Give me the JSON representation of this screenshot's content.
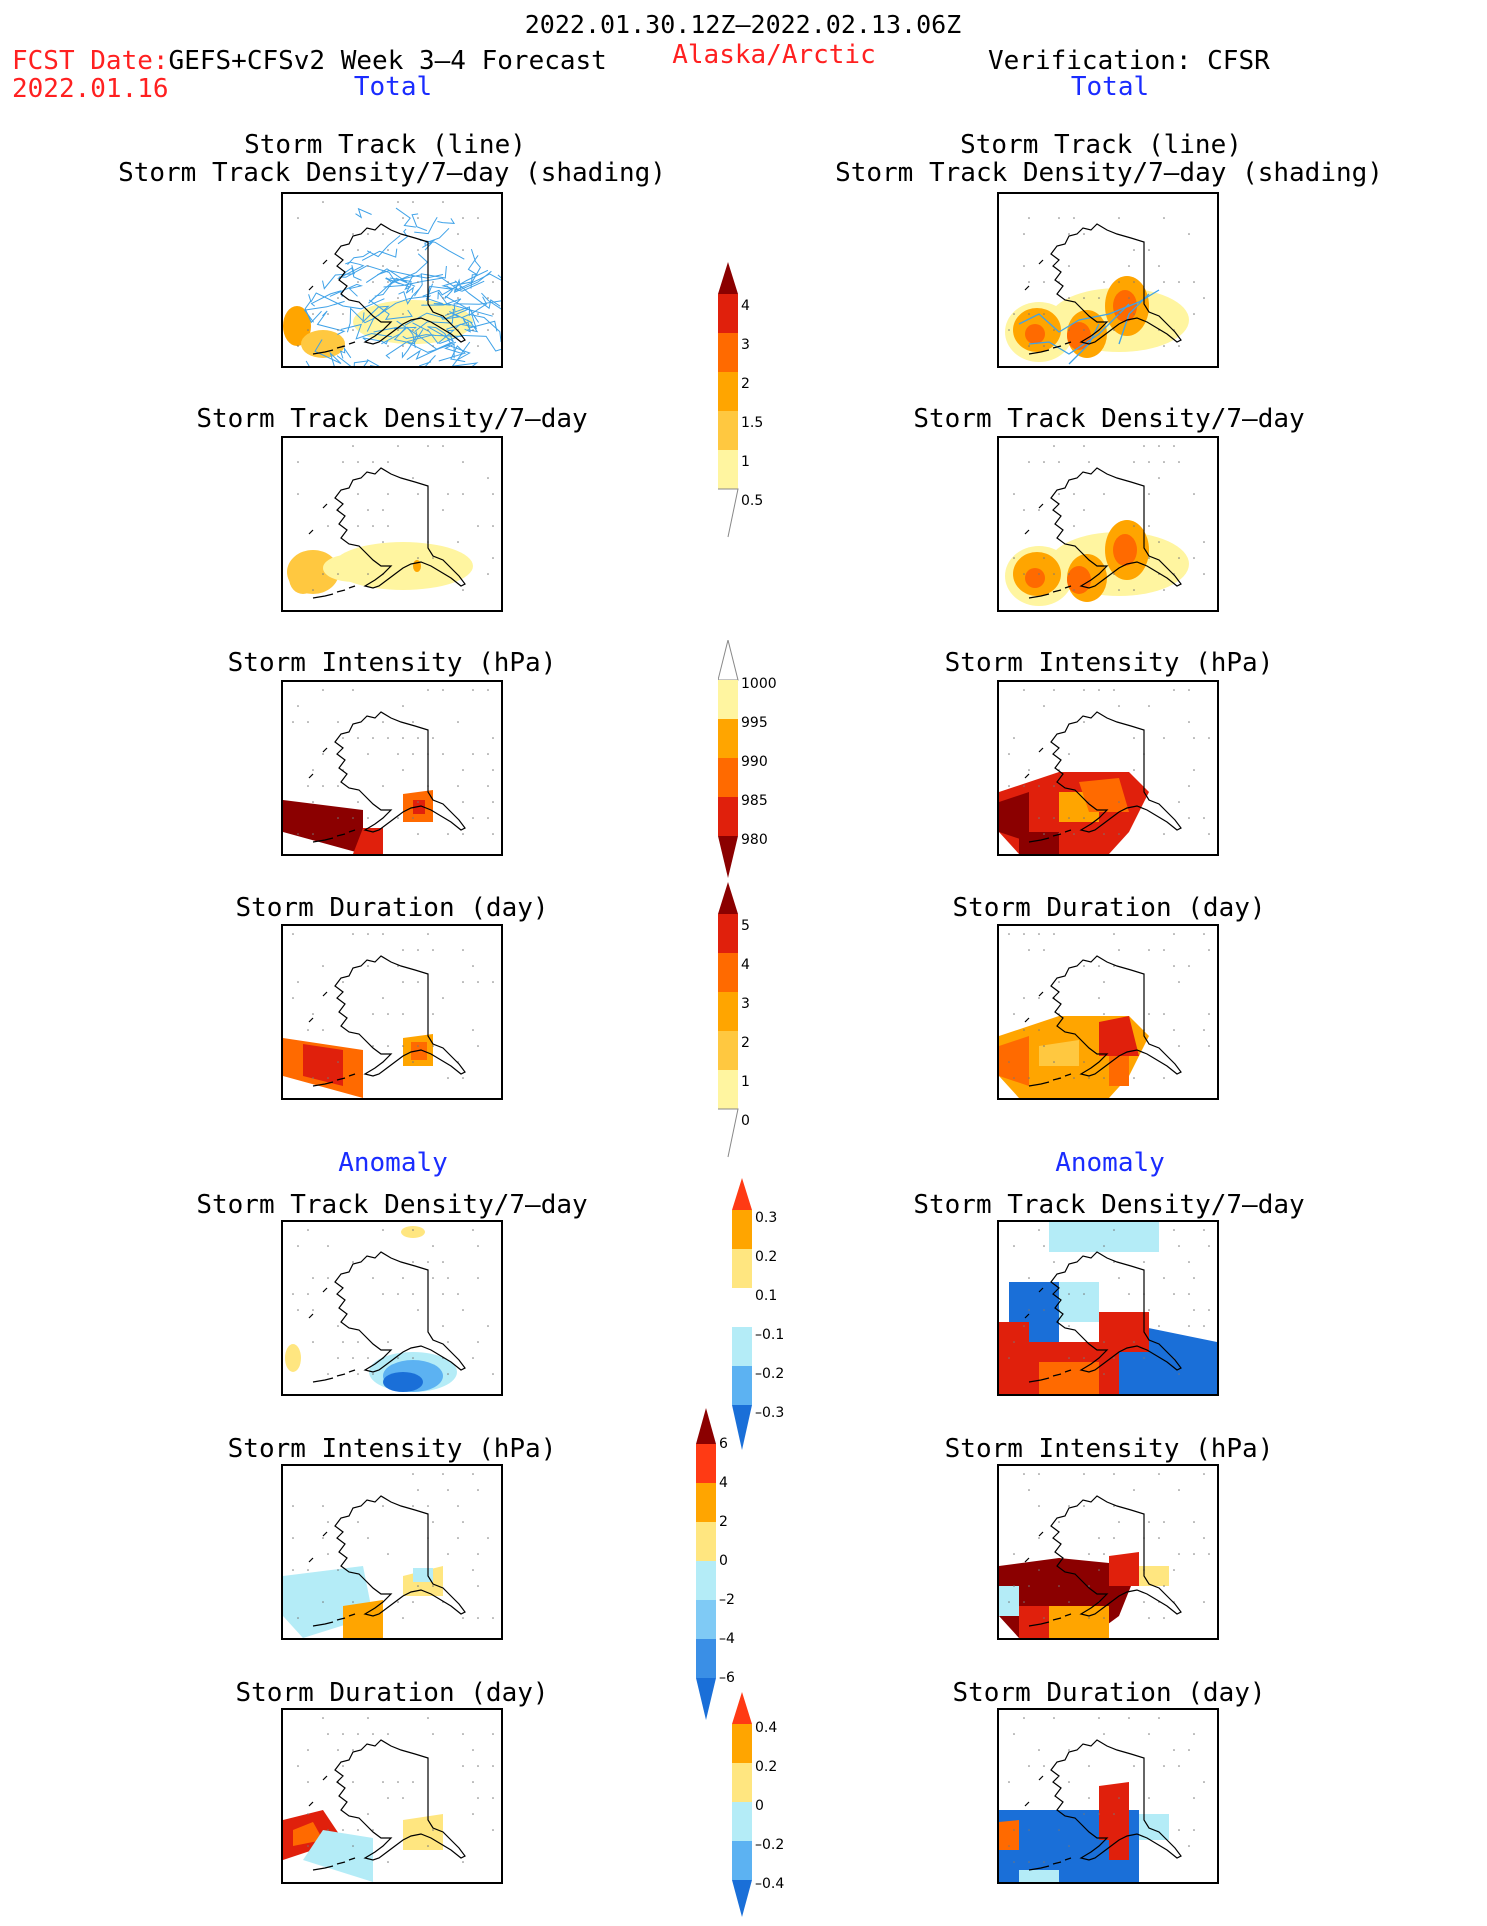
{
  "header": {
    "date_range": "2022.01.30.12Z–2022.02.13.06Z",
    "fcst_label": "FCST Date:",
    "fcst_model": "GEFS+CFSv2 Week 3–4 Forecast",
    "fcst_date": "2022.01.16",
    "region": "Alaska/Arctic",
    "verification": "Verification: CFSR",
    "left_total": "Total",
    "right_total": "Total",
    "left_anomaly": "Anomaly",
    "right_anomaly": "Anomaly"
  },
  "panels": {
    "track_title_1": "Storm Track (line)",
    "track_title_2": "Storm Track Density/7–day (shading)",
    "density": "Storm Track Density/7–day",
    "intensity": "Storm Intensity (hPa)",
    "duration": "Storm Duration (day)"
  },
  "colorbars": {
    "density_total": {
      "labels": [
        "4",
        "3",
        "2",
        "1.5",
        "1",
        "0.5"
      ],
      "colors": [
        "#8b0000",
        "#e0200c",
        "#ff6a00",
        "#ffa500",
        "#ffc840",
        "#fff5a0"
      ]
    },
    "intensity_total": {
      "labels": [
        "1000",
        "995",
        "990",
        "985",
        "980"
      ],
      "colors": [
        "#fff5a0",
        "#ffa500",
        "#ff6a00",
        "#e0200c",
        "#8b0000"
      ]
    },
    "duration_total": {
      "labels": [
        "5",
        "4",
        "3",
        "2",
        "1",
        "0"
      ],
      "colors": [
        "#8b0000",
        "#e0200c",
        "#ff6a00",
        "#ffa500",
        "#ffc840",
        "#fff5a0"
      ]
    },
    "density_anom": {
      "labels": [
        "0.3",
        "0.2",
        "0.1",
        "–0.1",
        "–0.2",
        "–0.3"
      ]
    },
    "intensity_anom": {
      "labels": [
        "6",
        "4",
        "2",
        "0",
        "–2",
        "–4",
        "–6"
      ]
    },
    "duration_anom": {
      "labels": [
        "0.4",
        "0.2",
        "0",
        "–0.2",
        "–0.4"
      ]
    }
  }
}
